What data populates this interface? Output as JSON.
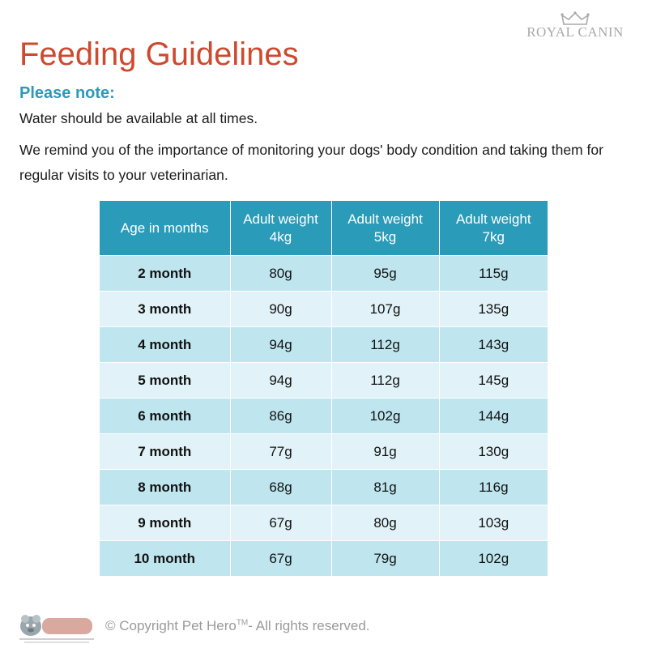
{
  "brand": {
    "name": "ROYAL CANIN",
    "logo_icon": "crown-icon"
  },
  "header": {
    "title": "Feeding Guidelines",
    "subtitle": "Please note:"
  },
  "paragraphs": [
    "Water should be available at all times.",
    "We remind you of the importance of monitoring your dogs' body condition and taking them for regular visits to your veterinarian."
  ],
  "table": {
    "headers": [
      [
        "Age in months"
      ],
      [
        "Adult weight",
        "4kg"
      ],
      [
        "Adult weight",
        "5kg"
      ],
      [
        "Adult weight",
        "7kg"
      ]
    ],
    "rows": [
      [
        "2 month",
        "80g",
        "95g",
        "115g"
      ],
      [
        "3 month",
        "90g",
        "107g",
        "135g"
      ],
      [
        "4 month",
        "94g",
        "112g",
        "143g"
      ],
      [
        "5 month",
        "94g",
        "112g",
        "145g"
      ],
      [
        "6 month",
        "86g",
        "102g",
        "144g"
      ],
      [
        "7 month",
        "77g",
        "91g",
        "130g"
      ],
      [
        "8 month",
        "68g",
        "81g",
        "116g"
      ],
      [
        "9 month",
        "67g",
        "80g",
        "103g"
      ],
      [
        "10 month",
        "67g",
        "79g",
        "102g"
      ]
    ]
  },
  "footer": {
    "logo_text": "PetHero",
    "copyright_prefix": "© Copyright Pet Hero",
    "trademark": "TM",
    "copyright_suffix": "- All rights reserved."
  },
  "colors": {
    "title": "#cc4a2e",
    "accent": "#2a9bb8",
    "row_dark": "#bfe6ef",
    "row_light": "#e1f3f8"
  }
}
